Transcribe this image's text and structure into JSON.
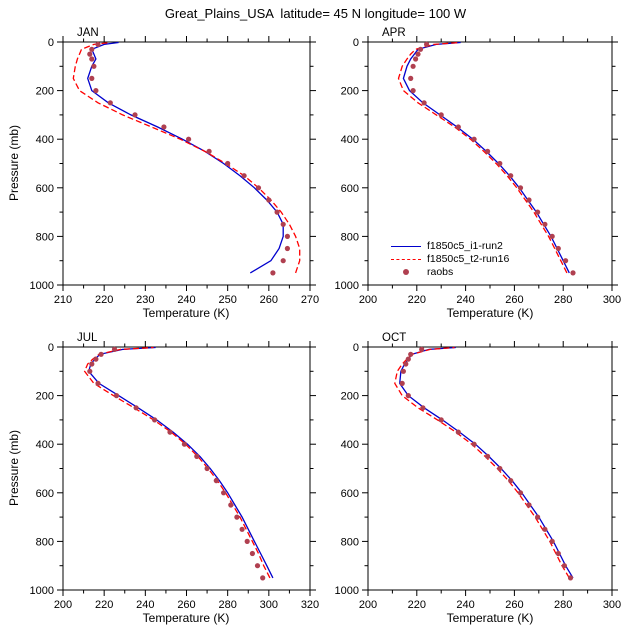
{
  "chart_data": {
    "type": "line",
    "title": "Great_Plains_USA  latitude= 45 N longitude= 100 W",
    "xlabel": "Temperature (K)",
    "ylabel": "Pressure (mb)",
    "grid": false,
    "legend_position": "inside APR panel, lower-left",
    "y_axis": {
      "min": 0,
      "max": 1000,
      "inverted": true,
      "ticks": [
        0,
        200,
        400,
        600,
        800,
        1000
      ],
      "minor_step": 100
    },
    "series_meta": [
      {
        "name": "f1850c5_i1-run2",
        "color": "#0000cd",
        "style": "solid"
      },
      {
        "name": "f1850c5_t2-run16",
        "color": "#ff0000",
        "style": "dashed"
      },
      {
        "name": "raobs",
        "color": "#b04050",
        "style": "dots"
      }
    ],
    "panels": [
      {
        "label": "JAN",
        "xlim": [
          210,
          270
        ],
        "xticks": [
          210,
          220,
          230,
          240,
          250,
          260,
          270
        ],
        "series": [
          {
            "name": "f1850c5_i1-run2",
            "pressure": [
              950,
              900,
              850,
              800,
              750,
              700,
              650,
              600,
              550,
              500,
              450,
              400,
              350,
              300,
              250,
              200,
              150,
              100,
              70,
              50,
              30,
              10,
              2
            ],
            "temperature": [
              255.5,
              260.5,
              262.5,
              263.5,
              263.5,
              262,
              259.5,
              256.5,
              253,
              249,
              244.5,
              239,
              233,
              226.5,
              221,
              217,
              216,
              217,
              218,
              217.5,
              217,
              220,
              223.5
            ]
          },
          {
            "name": "f1850c5_t2-run16",
            "pressure": [
              950,
              900,
              850,
              800,
              750,
              700,
              650,
              600,
              550,
              500,
              450,
              400,
              350,
              300,
              250,
              200,
              150,
              100,
              70,
              50,
              30,
              10,
              2
            ],
            "temperature": [
              266.5,
              267.5,
              267.5,
              266.5,
              265,
              263,
              260.5,
              257.5,
              254,
              249.5,
              244.5,
              238.5,
              231.5,
              224.5,
              218.5,
              214,
              212.5,
              213,
              213.5,
              214,
              214.5,
              217.5,
              221.5
            ]
          },
          {
            "name": "raobs",
            "pressure": [
              950,
              900,
              850,
              800,
              750,
              700,
              650,
              600,
              550,
              500,
              450,
              400,
              350,
              300,
              250,
              200,
              150,
              100,
              70,
              50,
              30,
              10
            ],
            "temperature": [
              261,
              263.5,
              264.5,
              264.5,
              263.5,
              262,
              260,
              257.5,
              254,
              250,
              245.5,
              240.5,
              234.5,
              227.5,
              221.5,
              218,
              217,
              217.5,
              217,
              216.5,
              217,
              218.5
            ]
          }
        ]
      },
      {
        "label": "APR",
        "xlim": [
          200,
          300
        ],
        "xticks": [
          200,
          220,
          240,
          260,
          280,
          300
        ],
        "series": [
          {
            "name": "f1850c5_i1-run2",
            "pressure": [
              950,
              900,
              850,
              800,
              750,
              700,
              650,
              600,
              550,
              500,
              450,
              400,
              350,
              300,
              250,
              200,
              150,
              100,
              70,
              50,
              30,
              10,
              2
            ],
            "temperature": [
              282.5,
              280,
              277.5,
              275,
              272,
              269,
              265.5,
              262,
              258,
              253.5,
              248.5,
              243,
              236.5,
              229.5,
              222.5,
              217,
              214.5,
              216,
              217.5,
              219,
              220.5,
              228,
              238
            ]
          },
          {
            "name": "f1850c5_t2-run16",
            "pressure": [
              950,
              900,
              850,
              800,
              750,
              700,
              650,
              600,
              550,
              500,
              450,
              400,
              350,
              300,
              250,
              200,
              150,
              100,
              70,
              50,
              30,
              10,
              2
            ],
            "temperature": [
              281.5,
              279,
              276.5,
              274,
              271,
              268,
              264.5,
              261,
              257,
              252.5,
              247.5,
              242,
              235.5,
              228,
              220.5,
              214.5,
              212.5,
              214,
              216,
              217.5,
              219.5,
              227,
              237.5
            ]
          },
          {
            "name": "raobs",
            "pressure": [
              950,
              900,
              850,
              800,
              750,
              700,
              650,
              600,
              550,
              500,
              450,
              400,
              350,
              300,
              250,
              200,
              150,
              100,
              70,
              50,
              30,
              10
            ],
            "temperature": [
              284,
              281,
              278,
              275.5,
              272.5,
              269.5,
              266,
              262.5,
              258.5,
              254,
              249,
              243.5,
              237,
              230,
              223,
              218.5,
              217.5,
              218.5,
              219.5,
              220.5,
              221.5,
              224
            ]
          }
        ]
      },
      {
        "label": "JUL",
        "xlim": [
          200,
          320
        ],
        "xticks": [
          200,
          220,
          240,
          260,
          280,
          300,
          320
        ],
        "series": [
          {
            "name": "f1850c5_i1-run2",
            "pressure": [
              950,
              900,
              850,
              800,
              750,
              700,
              650,
              600,
              550,
              500,
              450,
              400,
              350,
              300,
              250,
              200,
              150,
              100,
              70,
              50,
              30,
              10,
              2
            ],
            "temperature": [
              302,
              299,
              296,
              293,
              290,
              287,
              283.5,
              280,
              276,
              271.5,
              266.5,
              260.5,
              253.5,
              245.5,
              236.5,
              227,
              217.5,
              212.5,
              213.5,
              215.5,
              218,
              229,
              245
            ]
          },
          {
            "name": "f1850c5_t2-run16",
            "pressure": [
              950,
              900,
              850,
              800,
              750,
              700,
              650,
              600,
              550,
              500,
              450,
              400,
              350,
              300,
              250,
              200,
              150,
              100,
              70,
              50,
              30,
              10,
              2
            ],
            "temperature": [
              300.5,
              297.5,
              295,
              292,
              289,
              286,
              282.5,
              279,
              275,
              270.5,
              265.5,
              259.5,
              252.5,
              244,
              234.5,
              224.5,
              215,
              210.5,
              212,
              214.5,
              217.5,
              228,
              244
            ]
          },
          {
            "name": "raobs",
            "pressure": [
              950,
              900,
              850,
              800,
              750,
              700,
              650,
              600,
              550,
              500,
              450,
              400,
              350,
              300,
              250,
              200,
              150,
              100,
              70,
              50,
              30,
              10
            ],
            "temperature": [
              297,
              294.5,
              292,
              289.5,
              287,
              284.5,
              281.5,
              278,
              274.5,
              270,
              265,
              259,
              252,
              244.5,
              235.5,
              226,
              217,
              213,
              214,
              216,
              218.5,
              225
            ]
          }
        ]
      },
      {
        "label": "OCT",
        "xlim": [
          200,
          300
        ],
        "xticks": [
          200,
          220,
          240,
          260,
          280,
          300
        ],
        "series": [
          {
            "name": "f1850c5_i1-run2",
            "pressure": [
              950,
              900,
              850,
              800,
              750,
              700,
              650,
              600,
              550,
              500,
              450,
              400,
              350,
              300,
              250,
              200,
              150,
              100,
              70,
              50,
              30,
              10,
              2
            ],
            "temperature": [
              284,
              281,
              278.5,
              276,
              273,
              270,
              266.5,
              263,
              259,
              254.5,
              249.5,
              244,
              237.5,
              230.5,
              223,
              216.5,
              213,
              213.5,
              215,
              216.5,
              218,
              225,
              236
            ]
          },
          {
            "name": "f1850c5_t2-run16",
            "pressure": [
              950,
              900,
              850,
              800,
              750,
              700,
              650,
              600,
              550,
              500,
              450,
              400,
              350,
              300,
              250,
              200,
              150,
              100,
              70,
              50,
              30,
              10,
              2
            ],
            "temperature": [
              282.5,
              279.5,
              277,
              274.5,
              271.5,
              268.5,
              265,
              261.5,
              257.5,
              253,
              248,
              242.5,
              236,
              228.5,
              220.5,
              214,
              211,
              212,
              214,
              216,
              218,
              225.5,
              235.5
            ]
          },
          {
            "name": "raobs",
            "pressure": [
              950,
              900,
              850,
              800,
              750,
              700,
              650,
              600,
              550,
              500,
              450,
              400,
              350,
              300,
              250,
              200,
              150,
              100,
              70,
              50,
              30,
              10
            ],
            "temperature": [
              283,
              280.5,
              278,
              275.5,
              272.5,
              269.5,
              266,
              262.5,
              258.5,
              254,
              249,
              243.5,
              237,
              230,
              222.5,
              216.5,
              214,
              214.5,
              215.5,
              216.5,
              217.5,
              222
            ]
          }
        ]
      }
    ]
  }
}
